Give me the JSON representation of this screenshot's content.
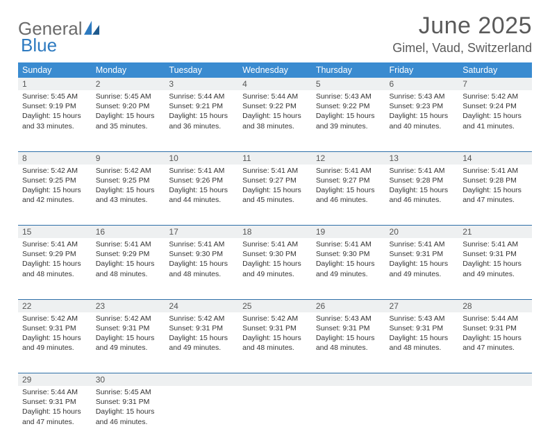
{
  "brand": {
    "word1": "General",
    "word2": "Blue"
  },
  "title": "June 2025",
  "location": "Gimel, Vaud, Switzerland",
  "colors": {
    "header_bg": "#3a8bd0",
    "header_fg": "#ffffff",
    "daynum_bg": "#eef0f1",
    "rule": "#2d6fa8",
    "text": "#333333",
    "brand_gray": "#6b6b6b",
    "brand_blue": "#2d7ac0"
  },
  "day_labels": [
    "Sunday",
    "Monday",
    "Tuesday",
    "Wednesday",
    "Thursday",
    "Friday",
    "Saturday"
  ],
  "weeks": [
    [
      {
        "n": "1",
        "sr": "5:45 AM",
        "ss": "9:19 PM",
        "dl": "15 hours and 33 minutes."
      },
      {
        "n": "2",
        "sr": "5:45 AM",
        "ss": "9:20 PM",
        "dl": "15 hours and 35 minutes."
      },
      {
        "n": "3",
        "sr": "5:44 AM",
        "ss": "9:21 PM",
        "dl": "15 hours and 36 minutes."
      },
      {
        "n": "4",
        "sr": "5:44 AM",
        "ss": "9:22 PM",
        "dl": "15 hours and 38 minutes."
      },
      {
        "n": "5",
        "sr": "5:43 AM",
        "ss": "9:22 PM",
        "dl": "15 hours and 39 minutes."
      },
      {
        "n": "6",
        "sr": "5:43 AM",
        "ss": "9:23 PM",
        "dl": "15 hours and 40 minutes."
      },
      {
        "n": "7",
        "sr": "5:42 AM",
        "ss": "9:24 PM",
        "dl": "15 hours and 41 minutes."
      }
    ],
    [
      {
        "n": "8",
        "sr": "5:42 AM",
        "ss": "9:25 PM",
        "dl": "15 hours and 42 minutes."
      },
      {
        "n": "9",
        "sr": "5:42 AM",
        "ss": "9:25 PM",
        "dl": "15 hours and 43 minutes."
      },
      {
        "n": "10",
        "sr": "5:41 AM",
        "ss": "9:26 PM",
        "dl": "15 hours and 44 minutes."
      },
      {
        "n": "11",
        "sr": "5:41 AM",
        "ss": "9:27 PM",
        "dl": "15 hours and 45 minutes."
      },
      {
        "n": "12",
        "sr": "5:41 AM",
        "ss": "9:27 PM",
        "dl": "15 hours and 46 minutes."
      },
      {
        "n": "13",
        "sr": "5:41 AM",
        "ss": "9:28 PM",
        "dl": "15 hours and 46 minutes."
      },
      {
        "n": "14",
        "sr": "5:41 AM",
        "ss": "9:28 PM",
        "dl": "15 hours and 47 minutes."
      }
    ],
    [
      {
        "n": "15",
        "sr": "5:41 AM",
        "ss": "9:29 PM",
        "dl": "15 hours and 48 minutes."
      },
      {
        "n": "16",
        "sr": "5:41 AM",
        "ss": "9:29 PM",
        "dl": "15 hours and 48 minutes."
      },
      {
        "n": "17",
        "sr": "5:41 AM",
        "ss": "9:30 PM",
        "dl": "15 hours and 48 minutes."
      },
      {
        "n": "18",
        "sr": "5:41 AM",
        "ss": "9:30 PM",
        "dl": "15 hours and 49 minutes."
      },
      {
        "n": "19",
        "sr": "5:41 AM",
        "ss": "9:30 PM",
        "dl": "15 hours and 49 minutes."
      },
      {
        "n": "20",
        "sr": "5:41 AM",
        "ss": "9:31 PM",
        "dl": "15 hours and 49 minutes."
      },
      {
        "n": "21",
        "sr": "5:41 AM",
        "ss": "9:31 PM",
        "dl": "15 hours and 49 minutes."
      }
    ],
    [
      {
        "n": "22",
        "sr": "5:42 AM",
        "ss": "9:31 PM",
        "dl": "15 hours and 49 minutes."
      },
      {
        "n": "23",
        "sr": "5:42 AM",
        "ss": "9:31 PM",
        "dl": "15 hours and 49 minutes."
      },
      {
        "n": "24",
        "sr": "5:42 AM",
        "ss": "9:31 PM",
        "dl": "15 hours and 49 minutes."
      },
      {
        "n": "25",
        "sr": "5:42 AM",
        "ss": "9:31 PM",
        "dl": "15 hours and 48 minutes."
      },
      {
        "n": "26",
        "sr": "5:43 AM",
        "ss": "9:31 PM",
        "dl": "15 hours and 48 minutes."
      },
      {
        "n": "27",
        "sr": "5:43 AM",
        "ss": "9:31 PM",
        "dl": "15 hours and 48 minutes."
      },
      {
        "n": "28",
        "sr": "5:44 AM",
        "ss": "9:31 PM",
        "dl": "15 hours and 47 minutes."
      }
    ],
    [
      {
        "n": "29",
        "sr": "5:44 AM",
        "ss": "9:31 PM",
        "dl": "15 hours and 47 minutes."
      },
      {
        "n": "30",
        "sr": "5:45 AM",
        "ss": "9:31 PM",
        "dl": "15 hours and 46 minutes."
      },
      null,
      null,
      null,
      null,
      null
    ]
  ],
  "labels": {
    "sunrise": "Sunrise:",
    "sunset": "Sunset:",
    "daylight": "Daylight:"
  }
}
